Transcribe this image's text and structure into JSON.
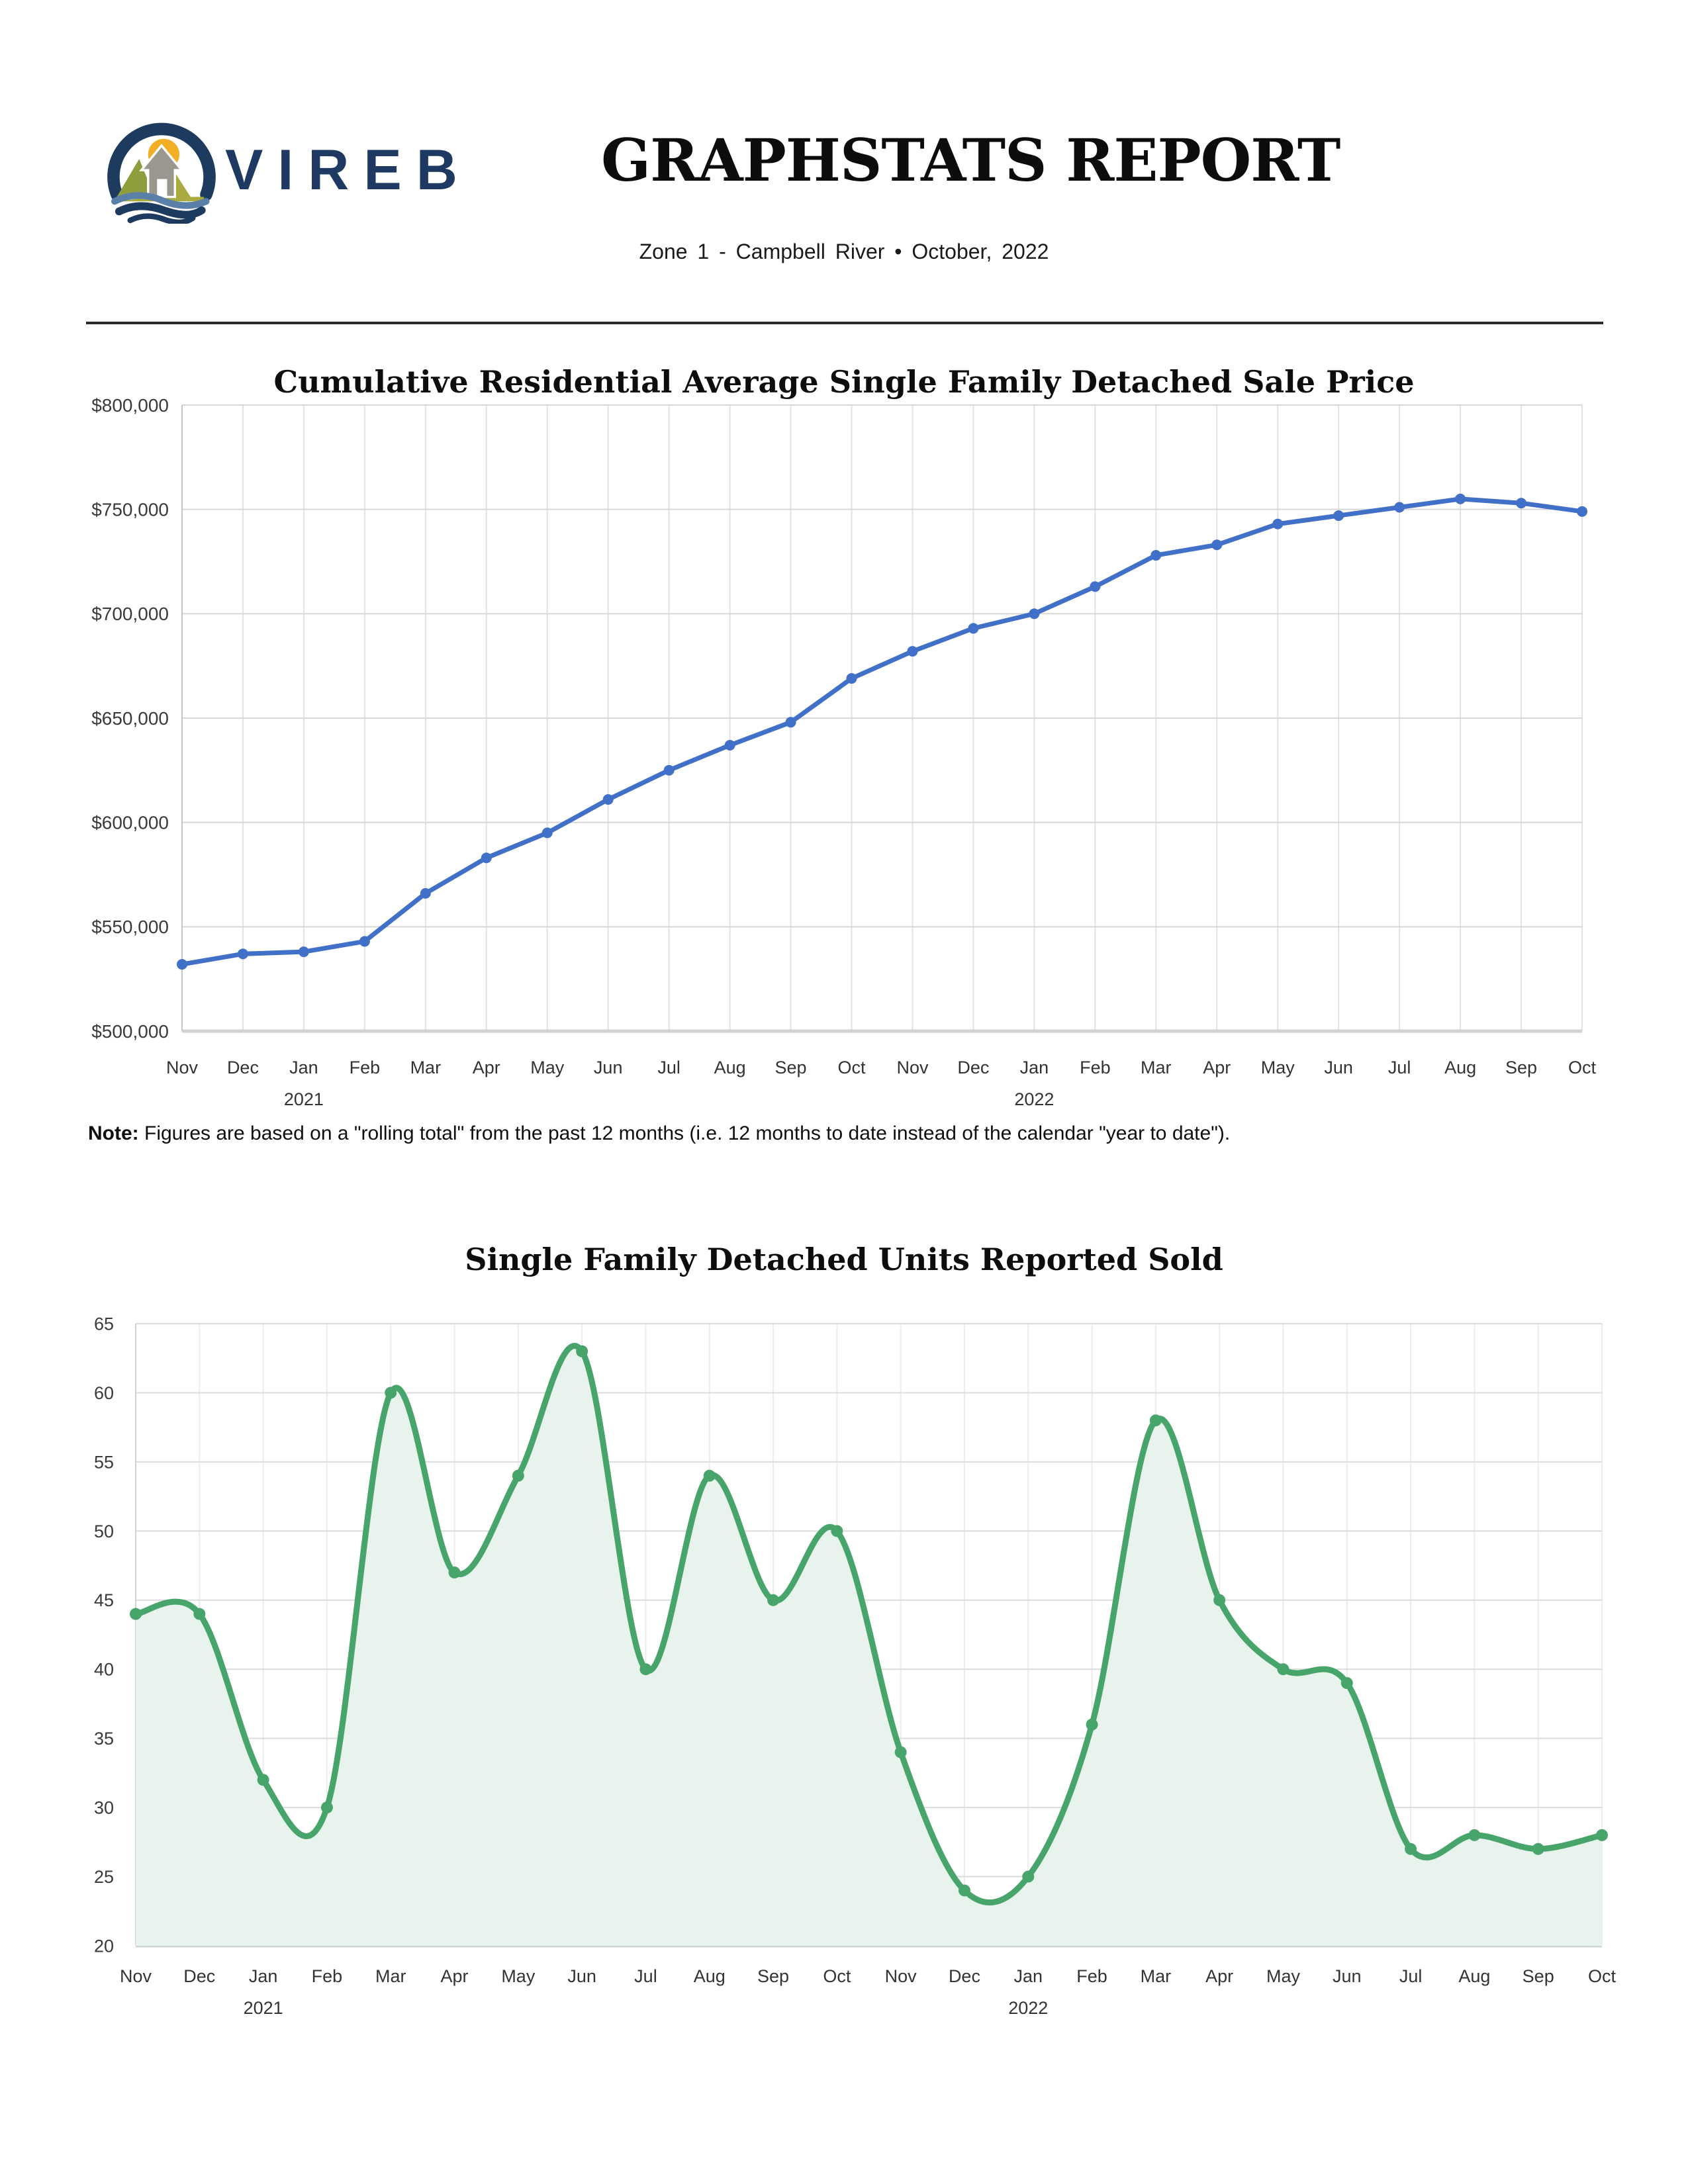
{
  "header": {
    "logo_text": "VIREB",
    "title": "GRAPHSTATS REPORT",
    "subtitle": "Zone 1 - Campbell River • October, 2022"
  },
  "note": {
    "label": "Note:",
    "text": " Figures are based on a \"rolling total\" from the past 12 months (i.e. 12 months to date instead of the calendar \"year to date\")."
  },
  "chart_data": [
    {
      "type": "line",
      "title": "Cumulative Residential Average Single Family Detached Sale Price",
      "categories": [
        "Nov",
        "Dec",
        "Jan",
        "Feb",
        "Mar",
        "Apr",
        "May",
        "Jun",
        "Jul",
        "Aug",
        "Sep",
        "Oct",
        "Nov",
        "Dec",
        "Jan",
        "Feb",
        "Mar",
        "Apr",
        "May",
        "Jun",
        "Jul",
        "Aug",
        "Sep",
        "Oct"
      ],
      "year_markers": [
        {
          "index": 2,
          "label": "2021"
        },
        {
          "index": 14,
          "label": "2022"
        }
      ],
      "values": [
        532000,
        537000,
        538000,
        543000,
        566000,
        583000,
        595000,
        611000,
        625000,
        637000,
        648000,
        669000,
        682000,
        693000,
        700000,
        713000,
        728000,
        733000,
        743000,
        747000,
        751000,
        755000,
        753000,
        749000
      ],
      "ylim": [
        500000,
        800000
      ],
      "yticks": [
        500000,
        550000,
        600000,
        650000,
        700000,
        750000,
        800000
      ],
      "ytick_labels": [
        "$500,000",
        "$550,000",
        "$600,000",
        "$650,000",
        "$700,000",
        "$750,000",
        "$800,000"
      ],
      "xlabel": "",
      "ylabel": "",
      "grid": true,
      "legend": "none",
      "smooth": false,
      "line_color": "#4070c7"
    },
    {
      "type": "area",
      "title": "Single Family Detached Units Reported Sold",
      "categories": [
        "Nov",
        "Dec",
        "Jan",
        "Feb",
        "Mar",
        "Apr",
        "May",
        "Jun",
        "Jul",
        "Aug",
        "Sep",
        "Oct",
        "Nov",
        "Dec",
        "Jan",
        "Feb",
        "Mar",
        "Apr",
        "May",
        "Jun",
        "Jul",
        "Aug",
        "Sep",
        "Oct"
      ],
      "year_markers": [
        {
          "index": 2,
          "label": "2021"
        },
        {
          "index": 14,
          "label": "2022"
        }
      ],
      "values": [
        44,
        44,
        32,
        30,
        60,
        47,
        54,
        63,
        40,
        54,
        45,
        50,
        34,
        24,
        25,
        36,
        58,
        45,
        40,
        39,
        27,
        28,
        27,
        28
      ],
      "ylim": [
        20,
        65
      ],
      "yticks": [
        20,
        25,
        30,
        35,
        40,
        45,
        50,
        55,
        60,
        65
      ],
      "ytick_labels": [
        "20",
        "25",
        "30",
        "35",
        "40",
        "45",
        "50",
        "55",
        "60",
        "65"
      ],
      "xlabel": "",
      "ylabel": "",
      "grid": true,
      "legend": "none",
      "smooth": true,
      "line_color": "#47a56b",
      "fill_color": "#e7f3ec"
    }
  ]
}
